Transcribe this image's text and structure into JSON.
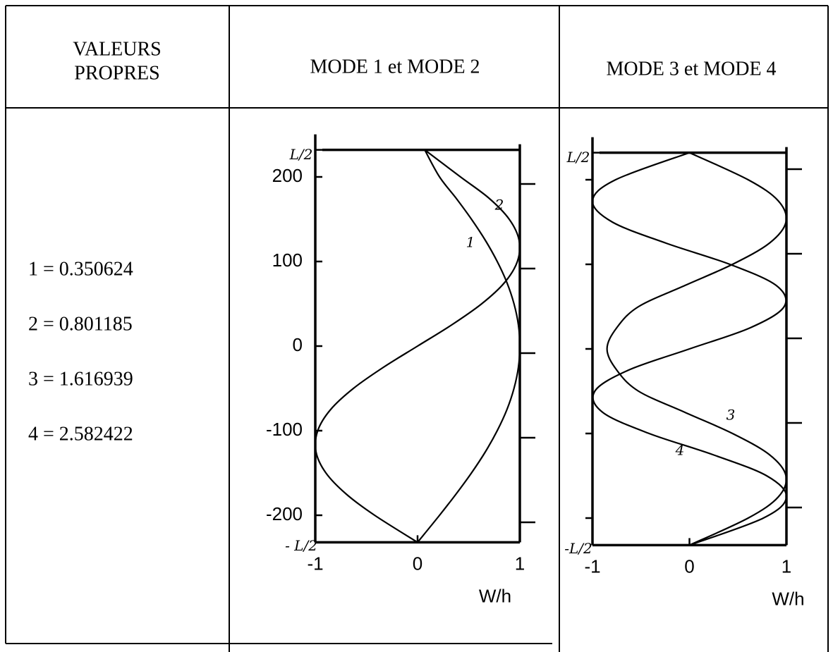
{
  "table": {
    "headers": [
      [
        "VALEURS",
        "PROPRES"
      ],
      [
        "MODE 1 et MODE 2"
      ],
      [
        "MODE 3 et MODE 4"
      ]
    ],
    "eigenvalues": [
      "1 = 0.350624",
      "2 = 0.801185",
      "3 = 1.616939",
      "4 = 2.582422"
    ]
  },
  "plots": [
    {
      "type": "line",
      "y": [
        -232,
        -200,
        -175,
        -150,
        -125,
        -100,
        -75,
        -50,
        -25,
        0,
        25,
        50,
        75,
        100,
        125,
        150,
        175,
        200,
        232
      ],
      "series": [
        {
          "name": "1",
          "color": "#000000",
          "values": [
            0,
            0.215,
            0.376,
            0.527,
            0.663,
            0.779,
            0.874,
            0.943,
            0.986,
            1,
            0.986,
            0.943,
            0.874,
            0.779,
            0.663,
            0.527,
            0.376,
            0.215,
            0.07
          ]
        },
        {
          "name": "2",
          "color": "#000000",
          "values": [
            0,
            -0.42,
            -0.697,
            -0.896,
            -0.993,
            -0.976,
            -0.85,
            -0.627,
            -0.333,
            0,
            0.333,
            0.627,
            0.85,
            0.976,
            0.993,
            0.896,
            0.697,
            0.42,
            0.07
          ]
        }
      ],
      "xlim": [
        -1,
        1
      ],
      "ylim": [
        -232,
        232
      ],
      "xticks": [
        -1,
        0,
        1
      ],
      "yticks": [
        {
          "value": 232,
          "label": "L/2"
        },
        200,
        100,
        0,
        -100,
        -200,
        {
          "value": -232,
          "label": "- L/2"
        }
      ],
      "xlabel": "W/h"
    },
    {
      "type": "line",
      "y": [
        -232,
        -200,
        -175,
        -150,
        -125,
        -100,
        -75,
        -50,
        -25,
        0,
        25,
        50,
        75,
        100,
        125,
        150,
        175,
        200,
        232
      ],
      "series": [
        {
          "name": "3",
          "color": "#000000",
          "values": [
            0,
            0.605,
            0.916,
            0.995,
            0.824,
            0.444,
            -0.047,
            -0.525,
            -0.75,
            -0.85,
            -0.75,
            -0.525,
            -0.047,
            0.444,
            0.824,
            0.995,
            0.916,
            0.605,
            0
          ]
        },
        {
          "name": "4",
          "color": "#000000",
          "values": [
            0,
            0.762,
            1.0,
            0.796,
            0.241,
            -0.416,
            -0.895,
            -0.976,
            -0.627,
            0,
            0.627,
            0.976,
            0.895,
            0.416,
            -0.241,
            -0.796,
            -1.0,
            -0.762,
            0
          ]
        }
      ],
      "xlim": [
        -1,
        1
      ],
      "ylim": [
        -232,
        232
      ],
      "xticks": [
        -1,
        0,
        1
      ],
      "yticks": [
        {
          "value": 232,
          "label": "L/2"
        },
        {
          "value": -232,
          "label": "-L/2"
        }
      ],
      "ymarks": [
        200,
        100,
        0,
        -100,
        -200
      ],
      "xlabel": "W/h"
    }
  ]
}
